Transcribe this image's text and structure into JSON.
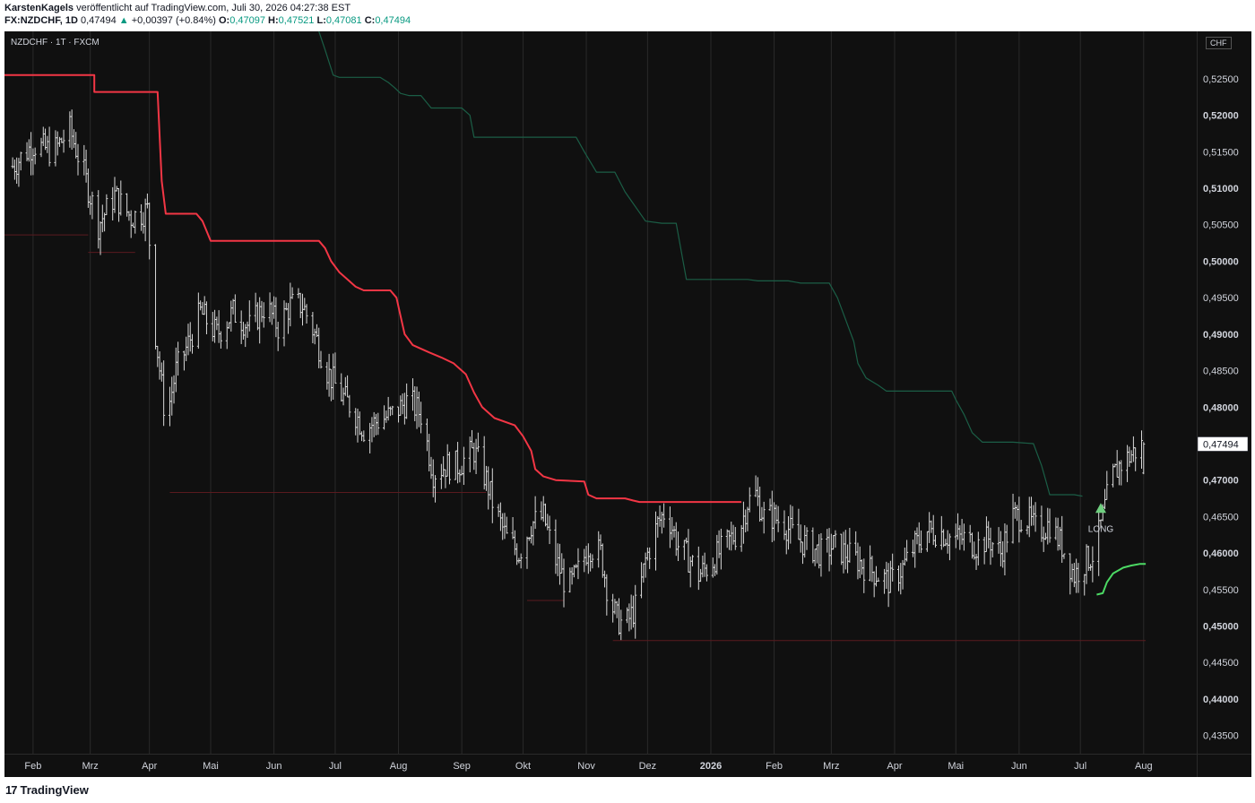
{
  "header": {
    "author": "KarstenKagels",
    "published_text": " veröffentlicht auf TradingView.com, Juli 30, 2026 04:27:38 EST",
    "symbol_full": "FX:NZDCHF, 1D",
    "last": "0,47494",
    "change_arrow": "▲",
    "change": "+0,00397 (+0.84%)",
    "o_label": "O:",
    "o_value": "0,47097",
    "h_label": "H:",
    "h_value": "0,47521",
    "l_label": "L:",
    "l_value": "0,47081",
    "c_label": "C:",
    "c_value": "0,47494"
  },
  "pane": {
    "symbol_label": "NZDCHF · 1T · FXCM",
    "currency": "CHF"
  },
  "brand": {
    "logo_text": "17",
    "name": "TradingView"
  },
  "colors": {
    "background": "#101010",
    "bars": "#d9d9d9",
    "red_line": "#f23645",
    "green_line": "#1b5e46",
    "bright_green": "#4cd964",
    "long_marker": "#6fcf7f"
  },
  "chart_data": {
    "type": "ohlc-bar",
    "title": "",
    "xlabel": "",
    "ylabel": "",
    "ylim": [
      0.4325,
      0.5315
    ],
    "y_ticks": [
      "0,52500",
      "0,52000",
      "0,51500",
      "0,51000",
      "0,50500",
      "0,50000",
      "0,49500",
      "0,49000",
      "0,48500",
      "0,48000",
      "0,47500",
      "0,47000",
      "0,46500",
      "0,46000",
      "0,45500",
      "0,45000",
      "0,44500",
      "0,44000",
      "0,43500"
    ],
    "x_ticks": [
      "Feb",
      "Mrz",
      "Apr",
      "Mai",
      "Jun",
      "Jul",
      "Aug",
      "Sep",
      "Okt",
      "Nov",
      "Dez",
      "2026",
      "Feb",
      "Mrz",
      "Apr",
      "Mai",
      "Jun",
      "Jul",
      "Aug"
    ],
    "x_tick_positions_days": [
      10,
      38,
      67,
      97,
      128,
      158,
      189,
      220,
      250,
      281,
      311,
      342,
      373,
      401,
      432,
      462,
      493,
      523,
      554
    ],
    "x_range_days": [
      -4,
      580
    ],
    "last_price_label": "0,47494",
    "close_path": [
      [
        0,
        0.513
      ],
      [
        10,
        0.516
      ],
      [
        20,
        0.515
      ],
      [
        28,
        0.518
      ],
      [
        35,
        0.512
      ],
      [
        42,
        0.505
      ],
      [
        50,
        0.509
      ],
      [
        58,
        0.506
      ],
      [
        66,
        0.507
      ],
      [
        70,
        0.49
      ],
      [
        75,
        0.478
      ],
      [
        80,
        0.485
      ],
      [
        85,
        0.488
      ],
      [
        92,
        0.493
      ],
      [
        100,
        0.49
      ],
      [
        108,
        0.493
      ],
      [
        116,
        0.491
      ],
      [
        124,
        0.494
      ],
      [
        130,
        0.491
      ],
      [
        136,
        0.494
      ],
      [
        142,
        0.494
      ],
      [
        148,
        0.49
      ],
      [
        154,
        0.485
      ],
      [
        160,
        0.482
      ],
      [
        166,
        0.48
      ],
      [
        172,
        0.477
      ],
      [
        178,
        0.478
      ],
      [
        186,
        0.479
      ],
      [
        194,
        0.481
      ],
      [
        200,
        0.479
      ],
      [
        206,
        0.471
      ],
      [
        212,
        0.472
      ],
      [
        218,
        0.472
      ],
      [
        226,
        0.474
      ],
      [
        232,
        0.47
      ],
      [
        236,
        0.466
      ],
      [
        242,
        0.462
      ],
      [
        248,
        0.46
      ],
      [
        254,
        0.464
      ],
      [
        260,
        0.465
      ],
      [
        266,
        0.459
      ],
      [
        272,
        0.455
      ],
      [
        278,
        0.458
      ],
      [
        282,
        0.461
      ],
      [
        288,
        0.46
      ],
      [
        292,
        0.454
      ],
      [
        296,
        0.451
      ],
      [
        300,
        0.45
      ],
      [
        306,
        0.453
      ],
      [
        310,
        0.459
      ],
      [
        316,
        0.464
      ],
      [
        320,
        0.466
      ],
      [
        326,
        0.461
      ],
      [
        332,
        0.459
      ],
      [
        336,
        0.457
      ],
      [
        340,
        0.458
      ],
      [
        346,
        0.46
      ],
      [
        352,
        0.462
      ],
      [
        356,
        0.463
      ],
      [
        360,
        0.467
      ],
      [
        364,
        0.468
      ],
      [
        368,
        0.465
      ],
      [
        372,
        0.465
      ],
      [
        378,
        0.464
      ],
      [
        384,
        0.462
      ],
      [
        390,
        0.461
      ],
      [
        396,
        0.46
      ],
      [
        402,
        0.461
      ],
      [
        408,
        0.46
      ],
      [
        414,
        0.459
      ],
      [
        418,
        0.458
      ],
      [
        424,
        0.457
      ],
      [
        430,
        0.456
      ],
      [
        436,
        0.458
      ],
      [
        442,
        0.461
      ],
      [
        448,
        0.463
      ],
      [
        454,
        0.463
      ],
      [
        460,
        0.462
      ],
      [
        466,
        0.462
      ],
      [
        472,
        0.461
      ],
      [
        478,
        0.462
      ],
      [
        484,
        0.46
      ],
      [
        490,
        0.465
      ],
      [
        496,
        0.465
      ],
      [
        502,
        0.463
      ],
      [
        508,
        0.464
      ],
      [
        514,
        0.461
      ],
      [
        520,
        0.457
      ],
      [
        526,
        0.459
      ],
      [
        530,
        0.46
      ],
      [
        534,
        0.465
      ],
      [
        538,
        0.47
      ],
      [
        542,
        0.472
      ],
      [
        546,
        0.473
      ],
      [
        550,
        0.474
      ],
      [
        554,
        0.4749
      ]
    ],
    "red_line": [
      [
        -4,
        0.5255
      ],
      [
        40,
        0.5255
      ],
      [
        40,
        0.5232
      ],
      [
        56,
        0.5232
      ],
      [
        56,
        0.5232
      ],
      [
        71,
        0.5232
      ],
      [
        73,
        0.511
      ],
      [
        75,
        0.5065
      ],
      [
        90,
        0.5065
      ],
      [
        93,
        0.5055
      ],
      [
        97,
        0.5028
      ],
      [
        150,
        0.5028
      ],
      [
        153,
        0.5018
      ],
      [
        156,
        0.5
      ],
      [
        160,
        0.4985
      ],
      [
        164,
        0.4975
      ],
      [
        168,
        0.4965
      ],
      [
        172,
        0.496
      ],
      [
        185,
        0.496
      ],
      [
        188,
        0.495
      ],
      [
        190,
        0.4925
      ],
      [
        192,
        0.49
      ],
      [
        196,
        0.4885
      ],
      [
        204,
        0.4875
      ],
      [
        210,
        0.4868
      ],
      [
        216,
        0.486
      ],
      [
        222,
        0.4845
      ],
      [
        226,
        0.482
      ],
      [
        230,
        0.48
      ],
      [
        236,
        0.4785
      ],
      [
        246,
        0.4775
      ],
      [
        250,
        0.476
      ],
      [
        254,
        0.474
      ],
      [
        256,
        0.4715
      ],
      [
        260,
        0.4705
      ],
      [
        266,
        0.47
      ],
      [
        280,
        0.4698
      ],
      [
        282,
        0.468
      ],
      [
        286,
        0.4675
      ],
      [
        300,
        0.4675
      ],
      [
        304,
        0.4672
      ],
      [
        307,
        0.467
      ],
      [
        357,
        0.467
      ]
    ],
    "green_line": [
      [
        150,
        0.5315
      ],
      [
        153,
        0.529
      ],
      [
        157,
        0.5255
      ],
      [
        160,
        0.5252
      ],
      [
        180,
        0.5252
      ],
      [
        184,
        0.5245
      ],
      [
        187,
        0.5238
      ],
      [
        190,
        0.523
      ],
      [
        194,
        0.5227
      ],
      [
        200,
        0.5227
      ],
      [
        205,
        0.521
      ],
      [
        220,
        0.521
      ],
      [
        224,
        0.52
      ],
      [
        226,
        0.517
      ],
      [
        270,
        0.517
      ],
      [
        276,
        0.517
      ],
      [
        280,
        0.515
      ],
      [
        286,
        0.5122
      ],
      [
        295,
        0.5122
      ],
      [
        300,
        0.5095
      ],
      [
        310,
        0.5055
      ],
      [
        318,
        0.5052
      ],
      [
        325,
        0.5052
      ],
      [
        330,
        0.4975
      ],
      [
        350,
        0.4975
      ],
      [
        355,
        0.4975
      ],
      [
        360,
        0.4975
      ],
      [
        365,
        0.4973
      ],
      [
        380,
        0.4973
      ],
      [
        386,
        0.497
      ],
      [
        400,
        0.497
      ],
      [
        404,
        0.495
      ],
      [
        408,
        0.492
      ],
      [
        412,
        0.489
      ],
      [
        414,
        0.486
      ],
      [
        418,
        0.484
      ],
      [
        424,
        0.483
      ],
      [
        428,
        0.4822
      ],
      [
        432,
        0.4822
      ],
      [
        460,
        0.4822
      ],
      [
        462,
        0.481
      ],
      [
        466,
        0.479
      ],
      [
        470,
        0.4765
      ],
      [
        475,
        0.4752
      ],
      [
        490,
        0.4752
      ],
      [
        500,
        0.475
      ],
      [
        504,
        0.472
      ],
      [
        506,
        0.47
      ],
      [
        508,
        0.468
      ],
      [
        520,
        0.468
      ],
      [
        524,
        0.4678
      ]
    ],
    "bright_green_line": [
      [
        531,
        0.4543
      ],
      [
        534,
        0.4545
      ],
      [
        536,
        0.456
      ],
      [
        539,
        0.4572
      ],
      [
        544,
        0.458
      ],
      [
        548,
        0.4583
      ],
      [
        552,
        0.4585
      ],
      [
        555,
        0.4585
      ]
    ],
    "support_lines": [
      [
        [
          -4,
          0.5036
        ],
        [
          37,
          0.5036
        ]
      ],
      [
        [
          37,
          0.5012
        ],
        [
          60,
          0.5012
        ]
      ],
      [
        [
          77,
          0.4683
        ],
        [
          232,
          0.4683
        ]
      ],
      [
        [
          252,
          0.4535
        ],
        [
          270,
          0.4535
        ]
      ],
      [
        [
          294,
          0.448
        ],
        [
          555,
          0.448
        ]
      ]
    ],
    "signal": {
      "label": "LONG",
      "day": 533,
      "price": 0.466
    }
  }
}
